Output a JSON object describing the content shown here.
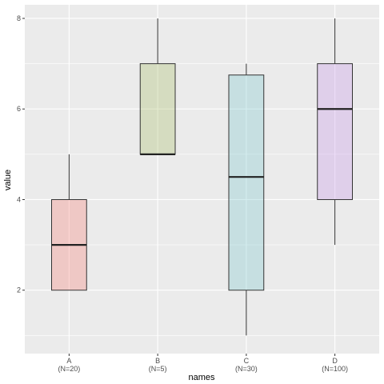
{
  "chart_data": {
    "type": "boxplot",
    "xlabel": "names",
    "ylabel": "value",
    "ylim": [
      0.6,
      8.3
    ],
    "yticks": [
      2,
      4,
      6,
      8
    ],
    "grid": true,
    "categories": [
      {
        "name": "A",
        "sublabel": "(N=20)",
        "fill": "#f8766d",
        "min": 2,
        "q1": 2,
        "median": 3,
        "q3": 4,
        "max": 5
      },
      {
        "name": "B",
        "sublabel": "(N=5)",
        "fill": "#a3b85e",
        "min": 5,
        "q1": 5,
        "median": 5,
        "q3": 7,
        "max": 8
      },
      {
        "name": "C",
        "sublabel": "(N=30)",
        "fill": "#6fc4c9",
        "min": 1,
        "q1": 2,
        "median": 4.5,
        "q3": 6.75,
        "max": 7
      },
      {
        "name": "D",
        "sublabel": "(N=100)",
        "fill": "#c28ee8",
        "min": 3,
        "q1": 4,
        "median": 6,
        "q3": 7,
        "max": 8
      }
    ],
    "panel_color": "#ebebeb",
    "grid_color": "#ffffff"
  }
}
